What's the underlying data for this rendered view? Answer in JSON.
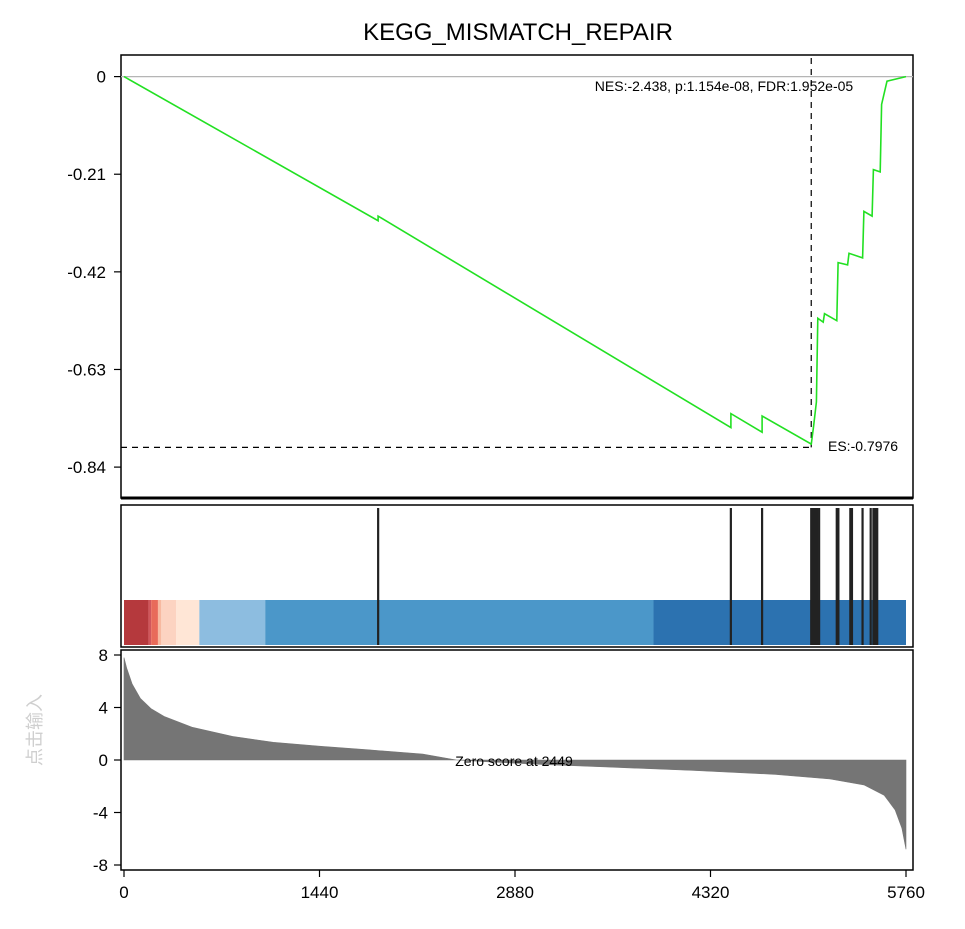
{
  "chart_data": {
    "type": "line",
    "title": "KEGG_MISMATCH_REPAIR",
    "watermark": "点击输入",
    "colors": {
      "es_line": "#22e022",
      "hit": "#222222",
      "metric_fill": "#757575"
    },
    "es_panel": {
      "ylim": [
        -0.9,
        0.04
      ],
      "yticks": [
        0,
        -0.21,
        -0.42,
        -0.63,
        -0.84
      ],
      "ytick_labels": [
        "0",
        "-0.21",
        "-0.42",
        "-0.63",
        "-0.84"
      ],
      "curve": [
        [
          0,
          0
        ],
        [
          1872,
          -0.31
        ],
        [
          1872,
          -0.3
        ],
        [
          4470,
          -0.755
        ],
        [
          4470,
          -0.725
        ],
        [
          4700,
          -0.765
        ],
        [
          4700,
          -0.73
        ],
        [
          5060,
          -0.79
        ],
        [
          5062,
          -0.792
        ],
        [
          5080,
          -0.75
        ],
        [
          5100,
          -0.7
        ],
        [
          5110,
          -0.52
        ],
        [
          5150,
          -0.528
        ],
        [
          5160,
          -0.51
        ],
        [
          5250,
          -0.525
        ],
        [
          5260,
          -0.4
        ],
        [
          5330,
          -0.405
        ],
        [
          5340,
          -0.38
        ],
        [
          5440,
          -0.39
        ],
        [
          5450,
          -0.29
        ],
        [
          5510,
          -0.3
        ],
        [
          5520,
          -0.2
        ],
        [
          5570,
          -0.205
        ],
        [
          5580,
          -0.06
        ],
        [
          5620,
          -0.01
        ],
        [
          5760,
          0
        ]
      ],
      "es_value": -0.7976,
      "es_position": 5062,
      "es_label": "ES:-0.7976",
      "stats_label": "NES:-2.438, p:1.154e-08, FDR:1.952e-05"
    },
    "hits": [
      1872,
      4470,
      4700,
      5062,
      5075,
      5090,
      5104,
      5120,
      5250,
      5262,
      5350,
      5362,
      5440,
      5500,
      5520,
      5535,
      5548
    ],
    "heatmap": [
      {
        "from": 0,
        "to": 180,
        "color": "#b5393d"
      },
      {
        "from": 180,
        "to": 200,
        "color": "#d0575c"
      },
      {
        "from": 200,
        "to": 250,
        "color": "#e86b5a"
      },
      {
        "from": 250,
        "to": 275,
        "color": "#f7b9a0"
      },
      {
        "from": 275,
        "to": 385,
        "color": "#fcd3c1"
      },
      {
        "from": 385,
        "to": 555,
        "color": "#ffe6d6"
      },
      {
        "from": 555,
        "to": 1040,
        "color": "#8dbde0"
      },
      {
        "from": 1040,
        "to": 3900,
        "color": "#4b97c9"
      },
      {
        "from": 3900,
        "to": 5760,
        "color": "#2c72b0"
      }
    ],
    "metric_panel": {
      "ylim": [
        -8,
        8
      ],
      "yticks": [
        8,
        4,
        0,
        -4,
        -8
      ],
      "ytick_labels": [
        "8",
        "4",
        "0",
        "-4",
        "-8"
      ],
      "curve": [
        [
          0,
          7.8
        ],
        [
          20,
          7.0
        ],
        [
          60,
          5.8
        ],
        [
          120,
          4.7
        ],
        [
          200,
          3.9
        ],
        [
          300,
          3.3
        ],
        [
          500,
          2.5
        ],
        [
          800,
          1.8
        ],
        [
          1100,
          1.35
        ],
        [
          1440,
          1.05
        ],
        [
          1800,
          0.78
        ],
        [
          2200,
          0.45
        ],
        [
          2449,
          0.0
        ],
        [
          2700,
          -0.15
        ],
        [
          3100,
          -0.35
        ],
        [
          3600,
          -0.55
        ],
        [
          4200,
          -0.8
        ],
        [
          4800,
          -1.1
        ],
        [
          5200,
          -1.45
        ],
        [
          5450,
          -1.9
        ],
        [
          5600,
          -2.7
        ],
        [
          5680,
          -3.8
        ],
        [
          5730,
          -5.2
        ],
        [
          5760,
          -6.8
        ]
      ],
      "zero_label": "Zero score at 2449"
    },
    "x_axis": {
      "xlim": [
        0,
        5760
      ],
      "ticks": [
        0,
        1440,
        2880,
        4320,
        5760
      ],
      "tick_labels": [
        "0",
        "1440",
        "2880",
        "4320",
        "5760"
      ]
    }
  }
}
